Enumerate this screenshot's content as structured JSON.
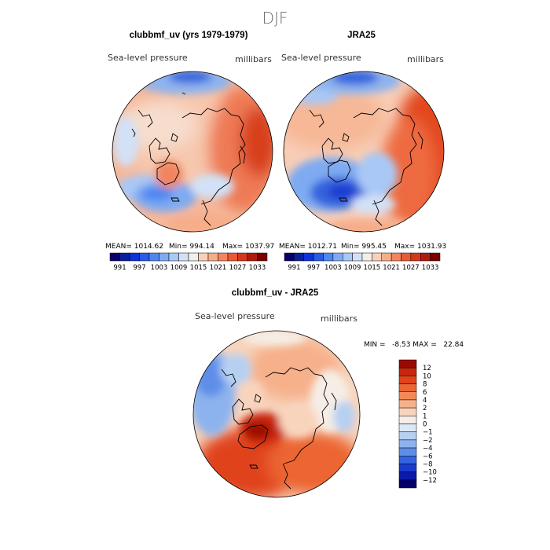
{
  "page": {
    "season_title": "DJF"
  },
  "panels": [
    {
      "id": "model",
      "title": "clubbmf_uv (yrs 1979-1979)",
      "variable": "Sea-level pressure",
      "units": "millibars",
      "stats": {
        "mean_label": "MEAN= 1014.62",
        "min_label": "Min= 994.14",
        "max_label": "Max= 1037.97"
      }
    },
    {
      "id": "obs",
      "title": "JRA25",
      "variable": "Sea-level pressure",
      "units": "millibars",
      "stats": {
        "mean_label": "MEAN= 1012.71",
        "min_label": "Min= 995.45",
        "max_label": "Max= 1031.93"
      }
    },
    {
      "id": "diff",
      "title": "clubbmf_uv - JRA25",
      "variable": "Sea-level pressure",
      "units": "millibars",
      "stats": {
        "minmax_label": "MIN =   -8.53 MAX =   22.84"
      }
    }
  ],
  "top_colorbar": {
    "labels": [
      "991",
      "997",
      "1003",
      "1009",
      "1015",
      "1021",
      "1027",
      "1033"
    ],
    "colors": [
      "#08006b",
      "#0a1fa0",
      "#1030d8",
      "#2a5ae8",
      "#4f86f0",
      "#7eaaf2",
      "#a9c8f5",
      "#d2e1f7",
      "#f2eeea",
      "#f8d0bb",
      "#f6ad8a",
      "#f28560",
      "#ea5a33",
      "#d4381c",
      "#b01c10",
      "#7a0000"
    ]
  },
  "diff_colorbar": {
    "labels": [
      "12",
      "10",
      "8",
      "6",
      "4",
      "2",
      "1",
      "0",
      "−1",
      "−2",
      "−4",
      "−6",
      "−8",
      "−10",
      "−12"
    ],
    "colors": [
      "#9b0a00",
      "#c8260c",
      "#e0431c",
      "#ec6533",
      "#f28a58",
      "#f6b08a",
      "#f9d4bd",
      "#f6eee6",
      "#dce8f6",
      "#b6d0f2",
      "#8db3ee",
      "#5f8ee8",
      "#3563dd",
      "#1a3bd0",
      "#0a1aa8",
      "#020068"
    ]
  }
}
